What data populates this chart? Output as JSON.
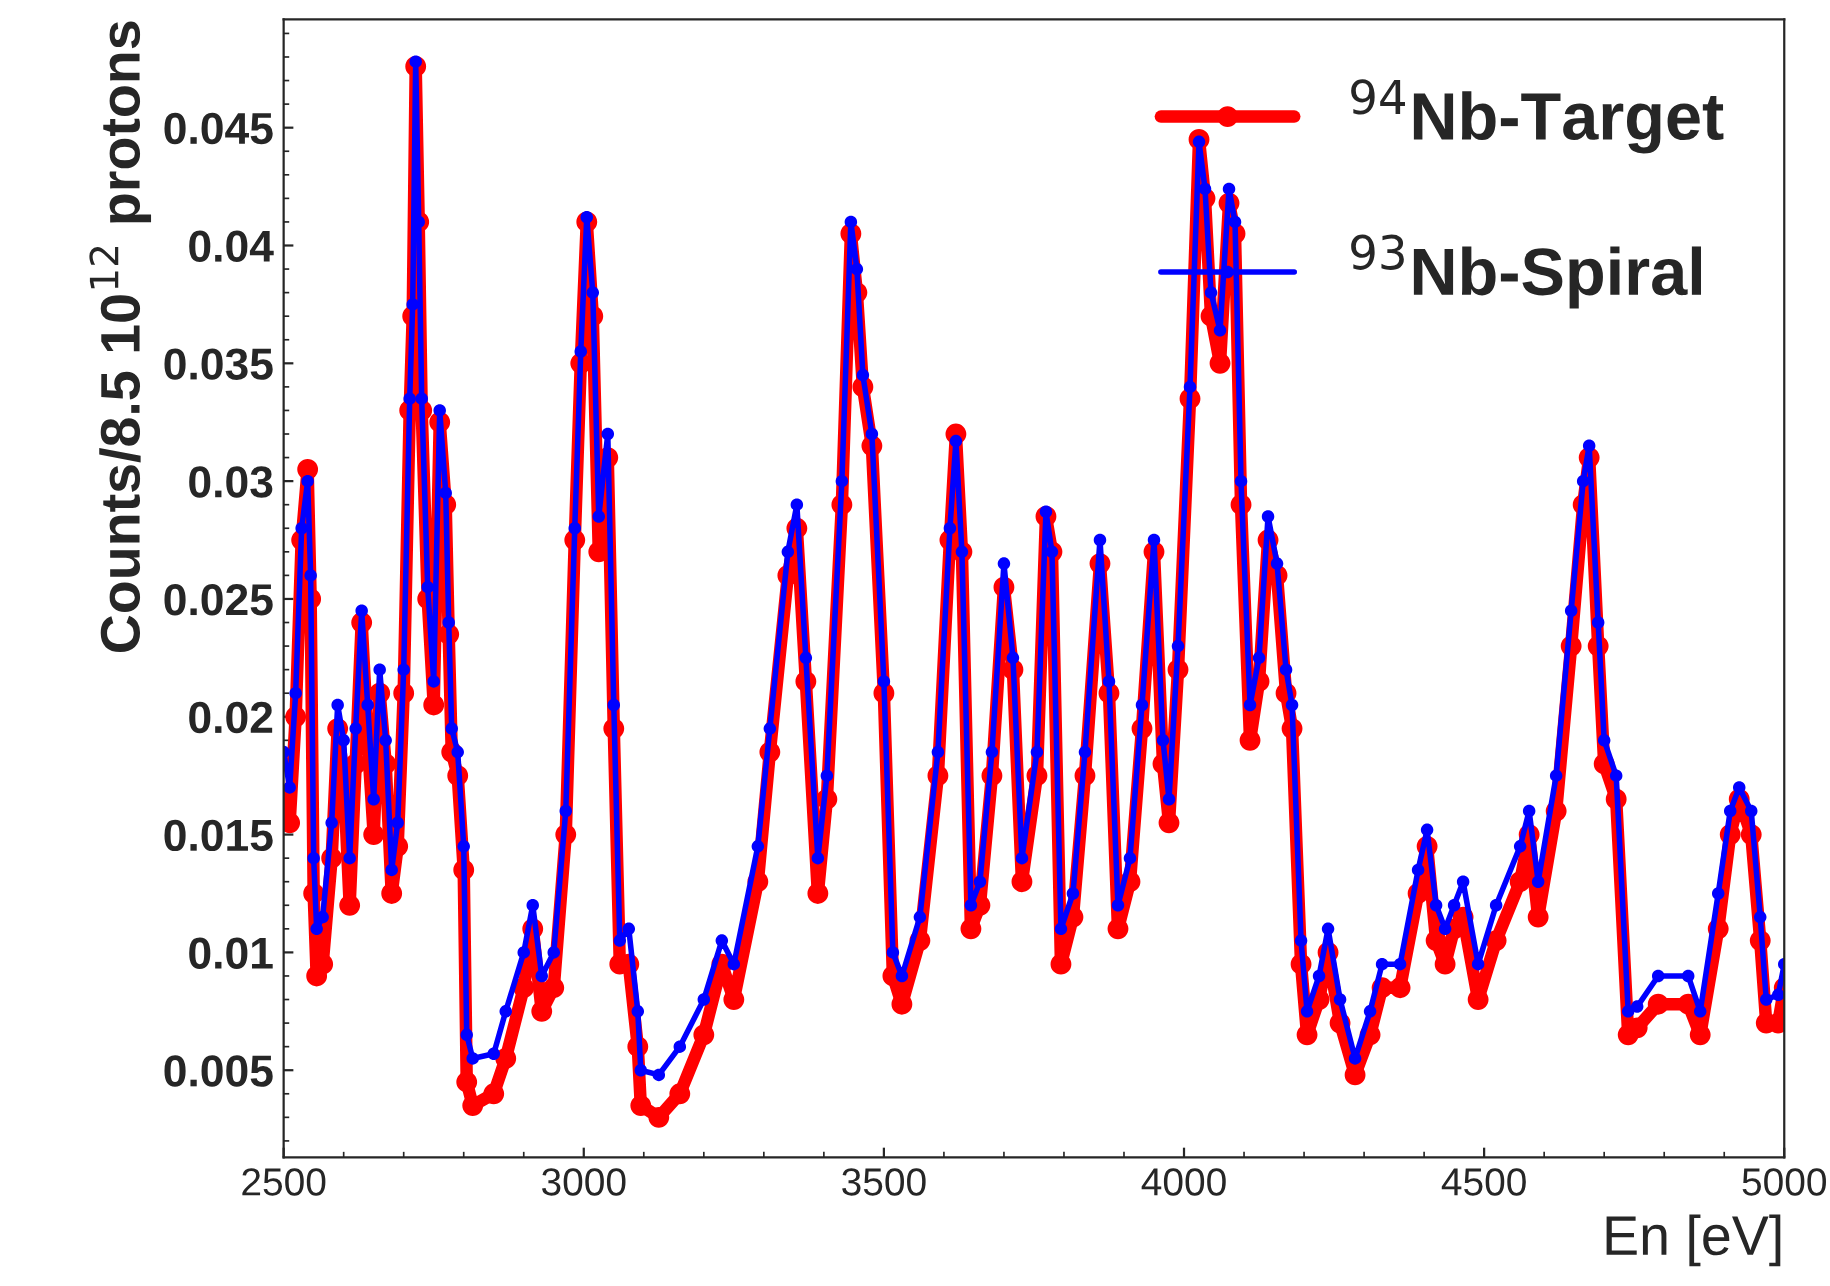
{
  "chart_data": {
    "type": "line",
    "xlabel": "En [eV]",
    "ylabel": "Counts/8.5 10$^{12}$ protons",
    "xlim": [
      2500,
      5000
    ],
    "xticks": [
      2500,
      3000,
      3500,
      4000,
      4500,
      5000
    ],
    "ylim": [
      0.0013,
      0.0496
    ],
    "yticks": [
      0.005,
      0.01,
      0.015,
      0.02,
      0.025,
      0.03,
      0.035,
      0.04,
      0.045
    ],
    "marker": "circle",
    "line_style": "solid",
    "legend": "top right",
    "grid": false,
    "x": [
      2500,
      2510,
      2520,
      2530,
      2540,
      2545,
      2550,
      2555,
      2565,
      2580,
      2590,
      2600,
      2610,
      2620,
      2630,
      2640,
      2650,
      2660,
      2670,
      2680,
      2690,
      2700,
      2710,
      2715,
      2720,
      2725,
      2730,
      2740,
      2750,
      2760,
      2770,
      2775,
      2780,
      2790,
      2800,
      2805,
      2815,
      2850,
      2870,
      2900,
      2915,
      2930,
      2950,
      2970,
      2985,
      2995,
      3005,
      3015,
      3025,
      3040,
      3050,
      3060,
      3075,
      3090,
      3095,
      3125,
      3160,
      3200,
      3230,
      3250,
      3290,
      3310,
      3340,
      3355,
      3370,
      3390,
      3405,
      3430,
      3445,
      3455,
      3465,
      3480,
      3500,
      3515,
      3530,
      3560,
      3590,
      3610,
      3620,
      3630,
      3645,
      3660,
      3680,
      3700,
      3715,
      3730,
      3755,
      3770,
      3780,
      3795,
      3815,
      3835,
      3860,
      3875,
      3890,
      3910,
      3930,
      3950,
      3965,
      3975,
      3990,
      4010,
      4025,
      4035,
      4045,
      4060,
      4075,
      4085,
      4095,
      4110,
      4125,
      4140,
      4155,
      4170,
      4180,
      4195,
      4205,
      4225,
      4240,
      4260,
      4285,
      4310,
      4330,
      4360,
      4390,
      4405,
      4420,
      4435,
      4450,
      4465,
      4490,
      4520,
      4560,
      4575,
      4590,
      4620,
      4645,
      4665,
      4675,
      4690,
      4700,
      4720,
      4740,
      4755,
      4790,
      4840,
      4860,
      4890,
      4910,
      4925,
      4945,
      4960,
      4970,
      4990,
      5000
    ],
    "series": [
      {
        "name": "$^{94}$Nb-Target",
        "color": "#ff0000",
        "values": [
          0.0165,
          0.0155,
          0.02,
          0.0275,
          0.0305,
          0.025,
          0.0125,
          0.009,
          0.0095,
          0.014,
          0.0195,
          0.0175,
          0.012,
          0.018,
          0.024,
          0.019,
          0.015,
          0.021,
          0.018,
          0.0125,
          0.0145,
          0.021,
          0.033,
          0.037,
          0.0476,
          0.041,
          0.033,
          0.025,
          0.0205,
          0.0325,
          0.029,
          0.0235,
          0.0185,
          0.0175,
          0.0135,
          0.0045,
          0.0035,
          0.004,
          0.0055,
          0.0085,
          0.011,
          0.0075,
          0.0085,
          0.015,
          0.0275,
          0.035,
          0.041,
          0.037,
          0.027,
          0.031,
          0.0195,
          0.0095,
          0.0095,
          0.006,
          0.0035,
          0.003,
          0.004,
          0.0065,
          0.0095,
          0.008,
          0.013,
          0.0185,
          0.026,
          0.028,
          0.0215,
          0.0125,
          0.0165,
          0.029,
          0.0405,
          0.038,
          0.034,
          0.0315,
          0.021,
          0.009,
          0.0078,
          0.0105,
          0.0175,
          0.0275,
          0.032,
          0.027,
          0.011,
          0.012,
          0.0175,
          0.0255,
          0.022,
          0.013,
          0.0175,
          0.0285,
          0.027,
          0.0095,
          0.0115,
          0.0175,
          0.0265,
          0.021,
          0.011,
          0.013,
          0.0195,
          0.027,
          0.018,
          0.0155,
          0.022,
          0.0335,
          0.0445,
          0.042,
          0.037,
          0.035,
          0.0418,
          0.0405,
          0.029,
          0.019,
          0.0215,
          0.0275,
          0.026,
          0.021,
          0.0195,
          0.0095,
          0.0065,
          0.008,
          0.01,
          0.007,
          0.0048,
          0.0065,
          0.0085,
          0.0085,
          0.0125,
          0.0145,
          0.0105,
          0.0095,
          0.011,
          0.0115,
          0.008,
          0.0105,
          0.013,
          0.015,
          0.0115,
          0.016,
          0.023,
          0.029,
          0.031,
          0.023,
          0.018,
          0.0165,
          0.0065,
          0.0068,
          0.0078,
          0.0078,
          0.0065,
          0.011,
          0.015,
          0.0165,
          0.015,
          0.0105,
          0.007,
          0.007,
          0.0085
        ]
      },
      {
        "name": "$^{93}$Nb-Spiral",
        "color": "#0000ff",
        "values": [
          0.0185,
          0.017,
          0.021,
          0.028,
          0.03,
          0.026,
          0.014,
          0.011,
          0.0115,
          0.0155,
          0.0205,
          0.019,
          0.014,
          0.0195,
          0.0245,
          0.0205,
          0.0165,
          0.022,
          0.019,
          0.0135,
          0.0155,
          0.022,
          0.0335,
          0.0375,
          0.0478,
          0.041,
          0.0335,
          0.0255,
          0.0215,
          0.033,
          0.0295,
          0.024,
          0.0195,
          0.0185,
          0.0145,
          0.0065,
          0.0055,
          0.0057,
          0.0075,
          0.01,
          0.012,
          0.009,
          0.01,
          0.016,
          0.028,
          0.0355,
          0.0412,
          0.038,
          0.0285,
          0.032,
          0.0205,
          0.0105,
          0.011,
          0.0075,
          0.005,
          0.0048,
          0.006,
          0.008,
          0.0105,
          0.0095,
          0.0145,
          0.0195,
          0.027,
          0.029,
          0.0225,
          0.014,
          0.0175,
          0.03,
          0.041,
          0.039,
          0.0345,
          0.032,
          0.0215,
          0.01,
          0.009,
          0.0115,
          0.0185,
          0.028,
          0.0317,
          0.027,
          0.012,
          0.013,
          0.0185,
          0.0265,
          0.0225,
          0.014,
          0.0185,
          0.0287,
          0.027,
          0.011,
          0.0125,
          0.0185,
          0.0275,
          0.0215,
          0.012,
          0.014,
          0.0205,
          0.0275,
          0.019,
          0.0165,
          0.023,
          0.034,
          0.0444,
          0.0424,
          0.038,
          0.0364,
          0.0424,
          0.041,
          0.03,
          0.0205,
          0.0225,
          0.0285,
          0.0265,
          0.022,
          0.0205,
          0.0105,
          0.0075,
          0.009,
          0.011,
          0.008,
          0.0055,
          0.0075,
          0.0095,
          0.0095,
          0.0135,
          0.0152,
          0.012,
          0.011,
          0.012,
          0.013,
          0.0095,
          0.012,
          0.0145,
          0.016,
          0.013,
          0.0175,
          0.0245,
          0.03,
          0.0315,
          0.024,
          0.019,
          0.0175,
          0.0075,
          0.0077,
          0.009,
          0.009,
          0.0075,
          0.0125,
          0.016,
          0.017,
          0.016,
          0.0115,
          0.008,
          0.0082,
          0.0095
        ]
      }
    ]
  }
}
